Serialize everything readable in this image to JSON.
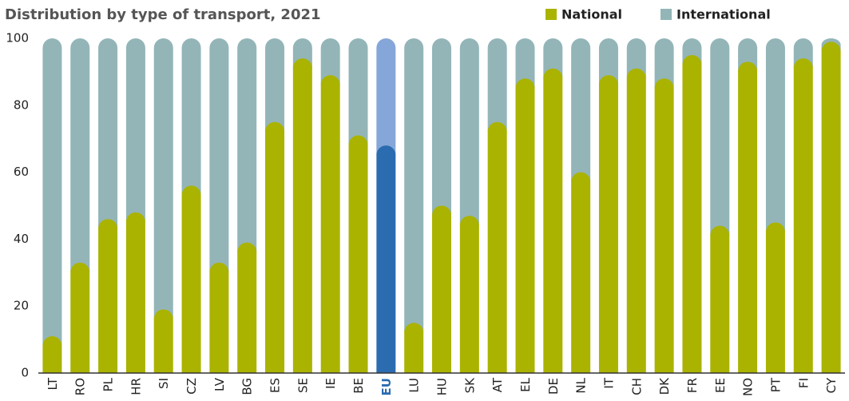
{
  "chart_data": {
    "type": "stacked_bar",
    "title": "Distribution by type of transport, 2021",
    "categories": [
      "LT",
      "RO",
      "PL",
      "HR",
      "SI",
      "CZ",
      "LV",
      "BG",
      "ES",
      "SE",
      "IE",
      "BE",
      "EU",
      "LU",
      "HU",
      "SK",
      "AT",
      "EL",
      "DE",
      "NL",
      "IT",
      "CH",
      "DK",
      "FR",
      "EE",
      "NO",
      "PT",
      "FI",
      "CY"
    ],
    "series": [
      {
        "name": "National",
        "color": "#aab300",
        "colors": [
          "#aab300",
          "#aab300",
          "#aab300",
          "#aab300",
          "#aab300",
          "#aab300",
          "#aab300",
          "#aab300",
          "#aab300",
          "#aab300",
          "#aab300",
          "#aab300",
          "#2b6cb0",
          "#aab300",
          "#aab300",
          "#aab300",
          "#aab300",
          "#aab300",
          "#aab300",
          "#aab300",
          "#aab300",
          "#aab300",
          "#aab300",
          "#aab300",
          "#aab300",
          "#aab300",
          "#aab300",
          "#aab300",
          "#aab300"
        ],
        "values": [
          11,
          33,
          46,
          48,
          19,
          56,
          33,
          39,
          75,
          94,
          89,
          71,
          68,
          15,
          50,
          47,
          75,
          88,
          91,
          60,
          89,
          91,
          88,
          95,
          44,
          93,
          45,
          94,
          99
        ]
      },
      {
        "name": "International",
        "color": "#93b5b8",
        "colors": [
          "#93b5b8",
          "#93b5b8",
          "#93b5b8",
          "#93b5b8",
          "#93b5b8",
          "#93b5b8",
          "#93b5b8",
          "#93b5b8",
          "#93b5b8",
          "#93b5b8",
          "#93b5b8",
          "#93b5b8",
          "#85a6d8",
          "#93b5b8",
          "#93b5b8",
          "#93b5b8",
          "#93b5b8",
          "#93b5b8",
          "#93b5b8",
          "#93b5b8",
          "#93b5b8",
          "#93b5b8",
          "#93b5b8",
          "#93b5b8",
          "#93b5b8",
          "#93b5b8",
          "#93b5b8",
          "#93b5b8",
          "#93b5b8"
        ],
        "values": [
          89,
          67,
          54,
          52,
          81,
          44,
          67,
          61,
          25,
          6,
          11,
          29,
          32,
          85,
          50,
          53,
          25,
          12,
          9,
          40,
          11,
          9,
          12,
          5,
          56,
          7,
          55,
          6,
          1
        ]
      }
    ],
    "ylim": [
      0,
      100
    ],
    "yticks": [
      0,
      20,
      40,
      60,
      80,
      100
    ],
    "grid": false
  }
}
